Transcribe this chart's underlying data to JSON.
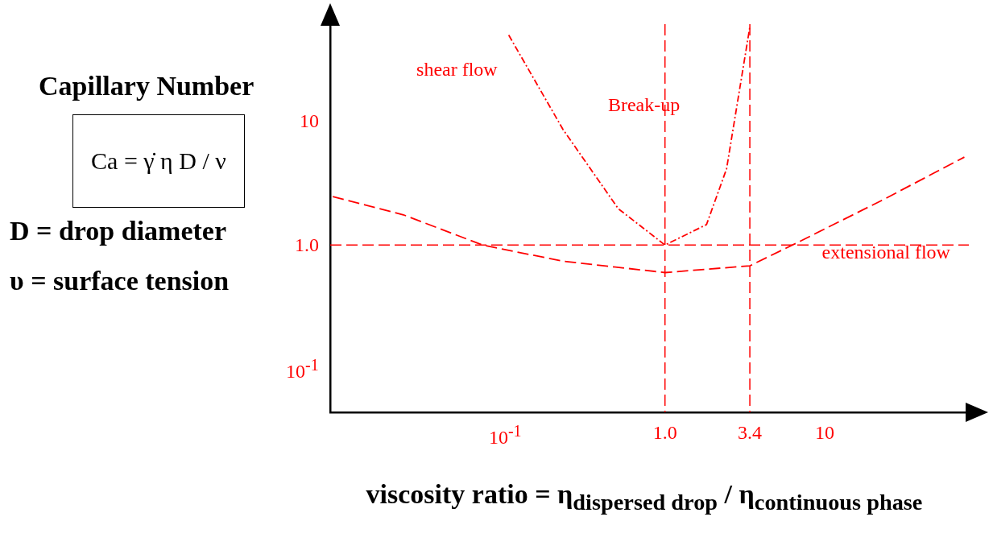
{
  "chart_data": {
    "type": "line",
    "xlabel": "viscosity ratio  =  η$_{dispersed drop}$ / η$_{continuous phase}$",
    "log": "xy",
    "grid": false,
    "legend": false,
    "marker": "none",
    "xlim": [
      0.008,
      80
    ],
    "ylim": [
      0.045,
      60
    ],
    "xticks": [
      {
        "value": 0.1,
        "label": "10$^{-1}$"
      },
      {
        "value": 1,
        "label": "1.0"
      },
      3.4,
      10
    ],
    "yticks": [
      {
        "value": 0.1,
        "label": "10$^{-1}$"
      },
      {
        "value": 1,
        "label": "1.0"
      },
      10
    ],
    "series": [
      {
        "color": "#ff0000",
        "line_style": "dotted",
        "x": [
          0.105,
          0.23,
          0.51,
          1,
          1.82,
          2.43,
          3.4
        ],
        "values": [
          49,
          8.5,
          1.96,
          1,
          1.46,
          4.1,
          57
        ]
      },
      {
        "color": "#ff0000",
        "line_style": "dashed",
        "x": [
          0.0083,
          0.023,
          0.072,
          0.23,
          1,
          3.4,
          7.2,
          23,
          75
        ],
        "values": [
          2.45,
          1.75,
          1,
          0.74,
          0.6,
          0.68,
          1.09,
          2.3,
          5.1
        ]
      }
    ],
    "ref_lines": [
      {
        "axis": "x",
        "value": 1,
        "color": "#ff0000",
        "line_style": "dashed"
      },
      {
        "axis": "x",
        "value": 3.4,
        "color": "#ff0000",
        "line_style": "dashed"
      },
      {
        "axis": "y",
        "value": 1,
        "color": "#ff0000",
        "line_style": "dashed"
      }
    ],
    "annotations": [
      "shear flow",
      "Break-up",
      "extensional flow",
      "Capillary Number",
      "Ca = γ̇ η D / ν",
      "D = drop diameter",
      "υ  =  surface tension"
    ]
  }
}
